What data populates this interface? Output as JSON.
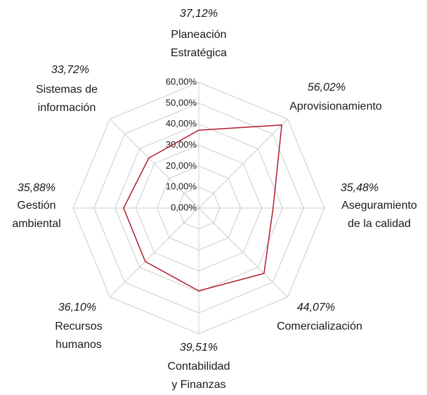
{
  "chart_data": {
    "type": "radar",
    "categories": [
      [
        "Planeación",
        "Estratégica"
      ],
      [
        "Aprovisionamiento"
      ],
      [
        "Aseguramiento",
        "de la calidad"
      ],
      [
        "Comercialización"
      ],
      [
        "Contabilidad",
        "y Finanzas"
      ],
      [
        "Recursos",
        "humanos"
      ],
      [
        "Gestión",
        "ambiental"
      ],
      [
        "Sistemas de",
        "información"
      ]
    ],
    "values": [
      37.12,
      56.02,
      35.48,
      44.07,
      39.51,
      36.1,
      35.88,
      33.72
    ],
    "value_labels": [
      "37,12%",
      "56,02%",
      "35,48%",
      "44,07%",
      "39,51%",
      "36,10%",
      "35,88%",
      "33,72%"
    ],
    "color": "#b01c2e",
    "ylim": [
      0,
      60
    ],
    "yticks": [
      {
        "value": 0,
        "label": "0,00%"
      },
      {
        "value": 10,
        "label": "10,00%"
      },
      {
        "value": 20,
        "label": "20,00%"
      },
      {
        "value": 30,
        "label": "30,00%"
      },
      {
        "value": 40,
        "label": "40,00%"
      },
      {
        "value": 50,
        "label": "50,00%"
      },
      {
        "value": 60,
        "label": "60,00%"
      }
    ],
    "grid": true
  }
}
